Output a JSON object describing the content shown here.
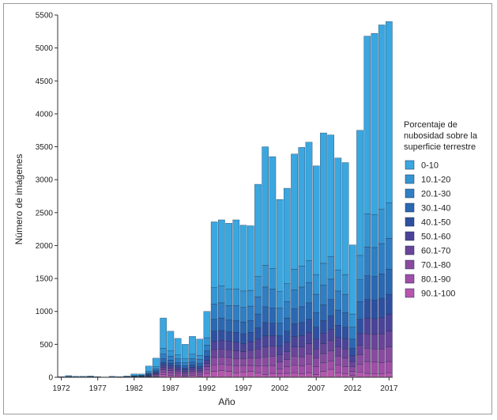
{
  "chart_data": {
    "type": "bar",
    "stacked": true,
    "xlabel": "Año",
    "ylabel": "Número de imágenes",
    "ylim": [
      0,
      5500
    ],
    "yticks": [
      0,
      500,
      1000,
      1500,
      2000,
      2500,
      3000,
      3500,
      4000,
      4500,
      5000,
      5500
    ],
    "xticks": [
      1972,
      1977,
      1982,
      1987,
      1992,
      1997,
      2002,
      2007,
      2012,
      2017
    ],
    "legend": {
      "title": [
        "Porcentaje de",
        "nubosidad sobre la",
        "superficie terrestre"
      ],
      "position": "right"
    },
    "colors": [
      "#3aa7e0",
      "#3595d3",
      "#2f7fc4",
      "#2a68b2",
      "#2f50a0",
      "#4c4399",
      "#6a4498",
      "#8a4b9f",
      "#a04ea6",
      "#b856ad"
    ],
    "categories": [
      1972,
      1973,
      1974,
      1975,
      1976,
      1977,
      1978,
      1979,
      1980,
      1981,
      1982,
      1983,
      1984,
      1985,
      1986,
      1987,
      1988,
      1989,
      1990,
      1991,
      1992,
      1993,
      1994,
      1995,
      1996,
      1997,
      1998,
      1999,
      2000,
      2001,
      2002,
      2003,
      2004,
      2005,
      2006,
      2007,
      2008,
      2009,
      2010,
      2011,
      2012,
      2013,
      2014,
      2015,
      2016,
      2017
    ],
    "totals": [
      10,
      25,
      15,
      15,
      20,
      10,
      5,
      15,
      10,
      20,
      50,
      50,
      170,
      290,
      900,
      700,
      590,
      500,
      620,
      580,
      1000,
      2360,
      2390,
      2340,
      2390,
      2310,
      2300,
      2930,
      3500,
      3350,
      2700,
      2870,
      3390,
      3490,
      3570,
      3210,
      3710,
      3680,
      3330,
      3260,
      2010,
      3750,
      5180,
      5220,
      5350,
      5400
    ],
    "series": [
      {
        "name": "0-10",
        "values": [
          5,
          13,
          8,
          8,
          10,
          5,
          3,
          8,
          5,
          10,
          25,
          20,
          80,
          130,
          460,
          300,
          250,
          220,
          270,
          250,
          400,
          1000,
          1000,
          1000,
          1050,
          1000,
          980,
          1400,
          1800,
          1700,
          1400,
          1450,
          1750,
          1800,
          1800,
          1650,
          1980,
          1850,
          1700,
          1700,
          1050,
          1900,
          2700,
          2750,
          2800,
          2750
        ]
      },
      {
        "name": "10.1-20",
        "values": [
          1,
          3,
          2,
          2,
          2,
          1,
          1,
          2,
          1,
          2,
          5,
          5,
          20,
          30,
          90,
          80,
          60,
          60,
          65,
          60,
          110,
          250,
          260,
          250,
          250,
          250,
          240,
          310,
          330,
          310,
          250,
          270,
          310,
          320,
          330,
          300,
          330,
          340,
          320,
          300,
          200,
          370,
          500,
          500,
          520,
          540
        ]
      },
      {
        "name": "20.1-30",
        "values": [
          1,
          2,
          1,
          1,
          2,
          1,
          0,
          1,
          1,
          2,
          4,
          4,
          15,
          25,
          70,
          60,
          55,
          45,
          55,
          55,
          90,
          230,
          230,
          220,
          230,
          220,
          220,
          260,
          300,
          290,
          230,
          250,
          290,
          300,
          310,
          280,
          300,
          310,
          290,
          280,
          180,
          330,
          440,
          440,
          460,
          470
        ]
      },
      {
        "name": "30.1-40",
        "values": [
          1,
          2,
          1,
          1,
          1,
          1,
          0,
          1,
          1,
          1,
          3,
          4,
          13,
          20,
          55,
          50,
          45,
          35,
          45,
          45,
          80,
          180,
          190,
          180,
          180,
          180,
          180,
          210,
          240,
          230,
          190,
          200,
          230,
          240,
          250,
          220,
          240,
          250,
          230,
          220,
          140,
          270,
          360,
          360,
          370,
          380
        ]
      },
      {
        "name": "40.1-50",
        "values": [
          1,
          1,
          1,
          1,
          1,
          1,
          0,
          1,
          1,
          1,
          3,
          3,
          10,
          15,
          40,
          40,
          35,
          30,
          35,
          35,
          60,
          150,
          150,
          140,
          150,
          150,
          140,
          170,
          200,
          190,
          160,
          170,
          190,
          200,
          200,
          180,
          190,
          200,
          180,
          180,
          110,
          210,
          280,
          280,
          290,
          300
        ]
      },
      {
        "name": "50.1-60",
        "values": [
          1,
          1,
          1,
          1,
          1,
          1,
          0,
          1,
          1,
          1,
          2,
          3,
          8,
          15,
          40,
          35,
          30,
          25,
          30,
          30,
          50,
          130,
          130,
          130,
          130,
          120,
          130,
          150,
          170,
          160,
          130,
          140,
          160,
          170,
          170,
          150,
          160,
          170,
          150,
          150,
          90,
          180,
          240,
          240,
          250,
          260
        ]
      },
      {
        "name": "60.1-70",
        "values": [
          0,
          1,
          1,
          1,
          1,
          0,
          1,
          1,
          0,
          1,
          2,
          3,
          7,
          15,
          35,
          35,
          30,
          25,
          30,
          30,
          50,
          120,
          120,
          120,
          120,
          110,
          120,
          140,
          150,
          150,
          110,
          120,
          140,
          150,
          160,
          140,
          150,
          160,
          140,
          140,
          80,
          150,
          220,
          220,
          230,
          240
        ]
      },
      {
        "name": "70.1-80",
        "values": [
          0,
          1,
          0,
          0,
          1,
          0,
          0,
          0,
          0,
          1,
          2,
          3,
          7,
          15,
          35,
          35,
          30,
          25,
          30,
          30,
          50,
          110,
          110,
          110,
          110,
          100,
          110,
          120,
          140,
          140,
          100,
          110,
          130,
          140,
          150,
          130,
          140,
          150,
          130,
          130,
          70,
          140,
          200,
          200,
          210,
          220
        ]
      },
      {
        "name": "80.1-90",
        "values": [
          0,
          1,
          0,
          0,
          1,
          0,
          0,
          0,
          0,
          1,
          2,
          3,
          5,
          15,
          35,
          35,
          30,
          20,
          30,
          25,
          50,
          100,
          100,
          100,
          100,
          100,
          90,
          100,
          130,
          120,
          80,
          100,
          120,
          120,
          130,
          120,
          130,
          130,
          120,
          110,
          60,
          120,
          180,
          180,
          170,
          170
        ]
      },
      {
        "name": "90.1-100",
        "values": [
          0,
          0,
          0,
          0,
          0,
          0,
          0,
          0,
          0,
          0,
          2,
          2,
          5,
          10,
          40,
          30,
          25,
          15,
          30,
          20,
          60,
          90,
          100,
          90,
          70,
          80,
          90,
          70,
          40,
          60,
          50,
          60,
          70,
          50,
          70,
          40,
          90,
          120,
          70,
          50,
          30,
          80,
          60,
          50,
          50,
          70
        ]
      }
    ]
  }
}
